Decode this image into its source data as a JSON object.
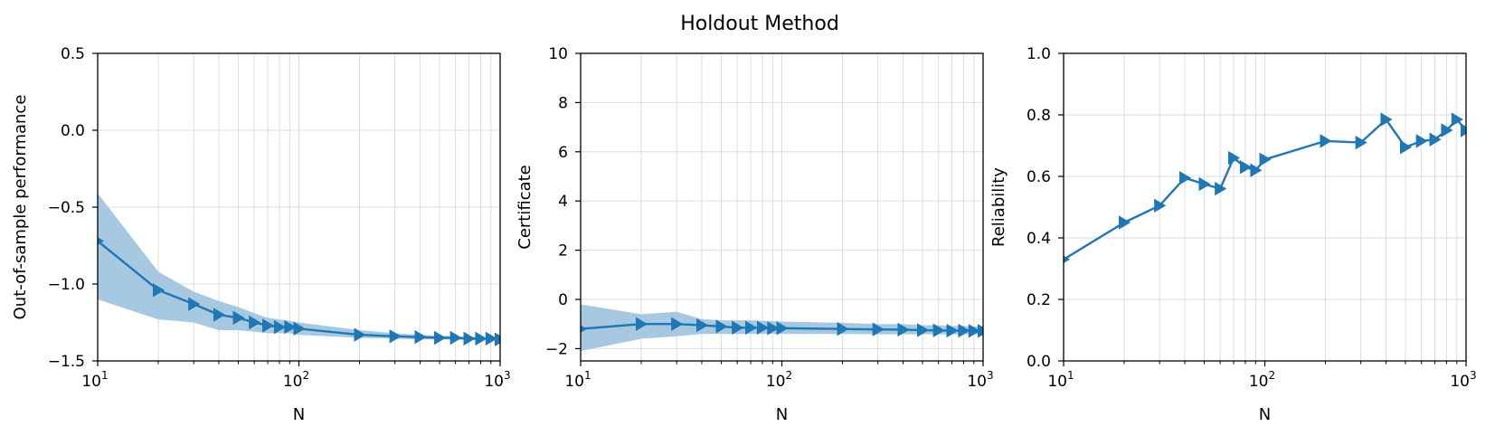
{
  "title": "Holdout Method",
  "colors": {
    "line": "#1f77b4",
    "band": "#a6c8e0",
    "grid": "#dddddd",
    "axis": "#000000"
  },
  "chart_data": [
    {
      "type": "line",
      "xlabel": "N",
      "ylabel": "Out-of-sample performance",
      "xscale": "log",
      "xlim": [
        10,
        1000
      ],
      "ylim": [
        -1.5,
        0.5
      ],
      "x_ticks": [
        10,
        100,
        1000
      ],
      "x_tick_labels": [
        {
          "base": "10",
          "exp": "1"
        },
        {
          "base": "10",
          "exp": "2"
        },
        {
          "base": "10",
          "exp": "3"
        }
      ],
      "y_ticks": [
        -1.5,
        -1.0,
        -0.5,
        0.0,
        0.5
      ],
      "y_tick_labels": [
        "−1.5",
        "−1.0",
        "−0.5",
        "0.0",
        "0.5"
      ],
      "grid": true,
      "marker": "triangle-right",
      "x": [
        10,
        20,
        30,
        40,
        50,
        60,
        70,
        80,
        90,
        100,
        200,
        300,
        400,
        500,
        600,
        700,
        800,
        900,
        1000
      ],
      "y": [
        -0.72,
        -1.04,
        -1.13,
        -1.2,
        -1.22,
        -1.25,
        -1.27,
        -1.28,
        -1.28,
        -1.29,
        -1.33,
        -1.34,
        -1.345,
        -1.35,
        -1.35,
        -1.355,
        -1.355,
        -1.355,
        -1.36
      ],
      "band_lower": [
        -1.1,
        -1.23,
        -1.25,
        -1.3,
        -1.3,
        -1.31,
        -1.32,
        -1.32,
        -1.32,
        -1.33,
        -1.35,
        -1.355,
        -1.36,
        -1.36,
        -1.36,
        -1.365,
        -1.365,
        -1.365,
        -1.365
      ],
      "band_upper": [
        -0.41,
        -0.92,
        -1.05,
        -1.11,
        -1.15,
        -1.19,
        -1.22,
        -1.23,
        -1.24,
        -1.25,
        -1.3,
        -1.32,
        -1.33,
        -1.335,
        -1.34,
        -1.345,
        -1.345,
        -1.35,
        -1.35
      ]
    },
    {
      "type": "line",
      "xlabel": "N",
      "ylabel": "Certificate",
      "xscale": "log",
      "xlim": [
        10,
        1000
      ],
      "ylim": [
        -2.5,
        10
      ],
      "x_ticks": [
        10,
        100,
        1000
      ],
      "x_tick_labels": [
        {
          "base": "10",
          "exp": "1"
        },
        {
          "base": "10",
          "exp": "2"
        },
        {
          "base": "10",
          "exp": "3"
        }
      ],
      "y_ticks": [
        -2,
        0,
        2,
        4,
        6,
        8,
        10
      ],
      "y_tick_labels": [
        "−2",
        "0",
        "2",
        "4",
        "6",
        "8",
        "10"
      ],
      "grid": true,
      "marker": "triangle-right",
      "x": [
        10,
        20,
        30,
        40,
        50,
        60,
        70,
        80,
        90,
        100,
        200,
        300,
        400,
        500,
        600,
        700,
        800,
        900,
        1000
      ],
      "y": [
        -1.2,
        -1.0,
        -1.0,
        -1.05,
        -1.1,
        -1.15,
        -1.15,
        -1.15,
        -1.17,
        -1.17,
        -1.2,
        -1.22,
        -1.23,
        -1.25,
        -1.26,
        -1.27,
        -1.27,
        -1.28,
        -1.28
      ],
      "band_lower": [
        -2.1,
        -1.6,
        -1.5,
        -1.4,
        -1.4,
        -1.4,
        -1.4,
        -1.4,
        -1.4,
        -1.4,
        -1.4,
        -1.42,
        -1.42,
        -1.42,
        -1.42,
        -1.42,
        -1.42,
        -1.42,
        -1.42
      ],
      "band_upper": [
        -0.2,
        -0.6,
        -0.5,
        -0.8,
        -0.85,
        -0.85,
        -0.85,
        -0.87,
        -0.88,
        -0.9,
        -0.95,
        -1.0,
        -1.0,
        -1.05,
        -1.05,
        -1.08,
        -1.08,
        -1.1,
        -1.1
      ]
    },
    {
      "type": "line",
      "xlabel": "N",
      "ylabel": "Reliability",
      "xscale": "log",
      "xlim": [
        10,
        1000
      ],
      "ylim": [
        0.0,
        1.0
      ],
      "x_ticks": [
        10,
        100,
        1000
      ],
      "x_tick_labels": [
        {
          "base": "10",
          "exp": "1"
        },
        {
          "base": "10",
          "exp": "2"
        },
        {
          "base": "10",
          "exp": "3"
        }
      ],
      "y_ticks": [
        0.0,
        0.2,
        0.4,
        0.6,
        0.8,
        1.0
      ],
      "y_tick_labels": [
        "0.0",
        "0.2",
        "0.4",
        "0.6",
        "0.8",
        "1.0"
      ],
      "grid": true,
      "marker": "triangle-right",
      "x": [
        10,
        20,
        30,
        40,
        50,
        60,
        70,
        80,
        90,
        100,
        200,
        300,
        400,
        500,
        600,
        700,
        800,
        900,
        1000
      ],
      "y": [
        0.33,
        0.45,
        0.505,
        0.595,
        0.575,
        0.56,
        0.66,
        0.63,
        0.62,
        0.655,
        0.715,
        0.71,
        0.785,
        0.695,
        0.715,
        0.72,
        0.75,
        0.785,
        0.75
      ]
    }
  ]
}
